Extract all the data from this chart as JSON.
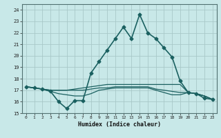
{
  "title": "",
  "xlabel": "Humidex (Indice chaleur)",
  "ylabel": "",
  "background_color": "#c8e8e8",
  "grid_color": "#a8c8c8",
  "line_color": "#1a6060",
  "xlim": [
    -0.5,
    23.5
  ],
  "ylim": [
    15,
    24.5
  ],
  "yticks": [
    15,
    16,
    17,
    18,
    19,
    20,
    21,
    22,
    23,
    24
  ],
  "xticks": [
    0,
    1,
    2,
    3,
    4,
    5,
    6,
    7,
    8,
    9,
    10,
    11,
    12,
    13,
    14,
    15,
    16,
    17,
    18,
    19,
    20,
    21,
    22,
    23
  ],
  "series": [
    {
      "x": [
        0,
        1,
        2,
        3,
        4,
        5,
        6,
        7,
        8,
        9,
        10,
        11,
        12,
        13,
        14,
        15,
        16,
        17,
        18,
        19,
        20,
        21,
        22,
        23
      ],
      "y": [
        17.3,
        17.2,
        17.1,
        16.9,
        16.0,
        15.4,
        16.1,
        16.1,
        18.5,
        19.5,
        20.5,
        21.5,
        22.5,
        21.5,
        23.6,
        22.0,
        21.5,
        20.7,
        19.9,
        17.8,
        16.8,
        16.7,
        16.3,
        16.2
      ],
      "marker": "D",
      "markersize": 2.5,
      "linewidth": 1.2
    },
    {
      "x": [
        0,
        1,
        2,
        3,
        4,
        5,
        6,
        7,
        8,
        9,
        10,
        11,
        12,
        13,
        14,
        15,
        16,
        17,
        18,
        19,
        20,
        21,
        22,
        23
      ],
      "y": [
        17.3,
        17.2,
        17.1,
        17.0,
        17.0,
        17.0,
        17.1,
        17.2,
        17.3,
        17.4,
        17.5,
        17.5,
        17.5,
        17.5,
        17.5,
        17.5,
        17.5,
        17.5,
        17.5,
        17.5,
        16.8,
        16.7,
        16.5,
        16.2
      ],
      "marker": null,
      "markersize": 0,
      "linewidth": 0.9
    },
    {
      "x": [
        0,
        1,
        2,
        3,
        4,
        5,
        6,
        7,
        8,
        9,
        10,
        11,
        12,
        13,
        14,
        15,
        16,
        17,
        18,
        19,
        20,
        21,
        22,
        23
      ],
      "y": [
        17.3,
        17.2,
        17.1,
        16.9,
        16.7,
        16.6,
        16.5,
        16.5,
        16.7,
        17.0,
        17.1,
        17.2,
        17.2,
        17.2,
        17.2,
        17.2,
        17.0,
        16.8,
        16.6,
        16.6,
        16.8,
        16.7,
        16.5,
        16.2
      ],
      "marker": null,
      "markersize": 0,
      "linewidth": 0.9
    },
    {
      "x": [
        0,
        1,
        2,
        3,
        4,
        5,
        6,
        7,
        8,
        9,
        10,
        11,
        12,
        13,
        14,
        15,
        16,
        17,
        18,
        19,
        20,
        21,
        22,
        23
      ],
      "y": [
        17.3,
        17.2,
        17.1,
        17.0,
        17.0,
        17.0,
        17.0,
        17.0,
        17.1,
        17.2,
        17.2,
        17.3,
        17.3,
        17.3,
        17.3,
        17.3,
        17.1,
        17.0,
        16.9,
        16.8,
        16.8,
        16.7,
        16.5,
        16.2
      ],
      "marker": null,
      "markersize": 0,
      "linewidth": 0.9
    }
  ]
}
